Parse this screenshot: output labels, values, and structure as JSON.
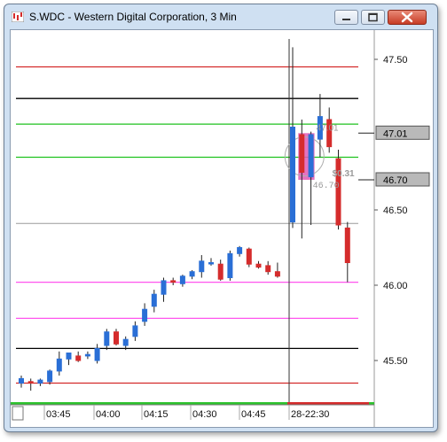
{
  "window": {
    "title": "S.WDC - Western Digital Corporation, 3 Min"
  },
  "buttons": {
    "minimize": "minimize",
    "maximize": "maximize",
    "close": "close"
  },
  "colors": {
    "bull": "#2a6fd6",
    "bear": "#d52c2c",
    "sel": "#e05bb5",
    "res_red": "#d42a2a",
    "black": "#000000",
    "green": "#1fc21f",
    "magenta": "#ff55ee",
    "grid": "#9a9a9a"
  },
  "price_axis": {
    "ticks": [
      "47.50",
      "46.50",
      "46.00",
      "45.50"
    ],
    "tags": [
      {
        "label": "47.01",
        "value": 47.01
      },
      {
        "label": "46.70",
        "value": 46.7
      }
    ]
  },
  "time_axis": {
    "ticks": [
      "03:45",
      "04:00",
      "04:15",
      "04:30",
      "04:45",
      "28-22:30"
    ]
  },
  "annotations": {
    "high_label": "47.01",
    "low_label": "46.70",
    "range_label": "$0.31"
  },
  "chart_data": {
    "type": "candlestick",
    "ylim": [
      45.25,
      47.75
    ],
    "levels_before": [
      47.45,
      47.24,
      47.07,
      46.85,
      46.41,
      46.02,
      45.78,
      45.58,
      45.35
    ],
    "levels_after": [
      47.45,
      47.24,
      47.07,
      46.85,
      46.41,
      46.02,
      45.78,
      45.58,
      45.35
    ],
    "level_colors": [
      "res_red",
      "black",
      "green",
      "green",
      "grid",
      "magenta",
      "magenta",
      "black",
      "res_red"
    ],
    "candles": [
      {
        "o": 45.35,
        "h": 45.4,
        "l": 45.32,
        "c": 45.38
      },
      {
        "o": 45.36,
        "h": 45.38,
        "l": 45.3,
        "c": 45.35
      },
      {
        "o": 45.35,
        "h": 45.38,
        "l": 45.33,
        "c": 45.37
      },
      {
        "o": 45.36,
        "h": 45.44,
        "l": 45.34,
        "c": 45.43
      },
      {
        "o": 45.43,
        "h": 45.56,
        "l": 45.4,
        "c": 45.51
      },
      {
        "o": 45.51,
        "h": 45.55,
        "l": 45.47,
        "c": 45.55
      },
      {
        "o": 45.53,
        "h": 45.56,
        "l": 45.49,
        "c": 45.5
      },
      {
        "o": 45.53,
        "h": 45.56,
        "l": 45.51,
        "c": 45.54
      },
      {
        "o": 45.5,
        "h": 45.61,
        "l": 45.48,
        "c": 45.58
      },
      {
        "o": 45.6,
        "h": 45.71,
        "l": 45.57,
        "c": 45.69
      },
      {
        "o": 45.69,
        "h": 45.71,
        "l": 45.6,
        "c": 45.61
      },
      {
        "o": 45.6,
        "h": 45.66,
        "l": 45.57,
        "c": 45.64
      },
      {
        "o": 45.66,
        "h": 45.76,
        "l": 45.63,
        "c": 45.73
      },
      {
        "o": 45.76,
        "h": 45.88,
        "l": 45.73,
        "c": 45.84
      },
      {
        "o": 45.86,
        "h": 45.97,
        "l": 45.82,
        "c": 45.94
      },
      {
        "o": 45.94,
        "h": 46.05,
        "l": 45.89,
        "c": 46.03
      },
      {
        "o": 46.03,
        "h": 46.05,
        "l": 46.0,
        "c": 46.02
      },
      {
        "o": 46.01,
        "h": 46.07,
        "l": 45.99,
        "c": 46.06
      },
      {
        "o": 46.06,
        "h": 46.1,
        "l": 46.04,
        "c": 46.09
      },
      {
        "o": 46.09,
        "h": 46.2,
        "l": 46.05,
        "c": 46.16
      },
      {
        "o": 46.15,
        "h": 46.18,
        "l": 46.13,
        "c": 46.15
      },
      {
        "o": 46.14,
        "h": 46.17,
        "l": 46.03,
        "c": 46.04
      },
      {
        "o": 46.05,
        "h": 46.23,
        "l": 46.03,
        "c": 46.21
      },
      {
        "o": 46.21,
        "h": 46.26,
        "l": 46.19,
        "c": 46.25
      },
      {
        "o": 46.24,
        "h": 46.25,
        "l": 46.12,
        "c": 46.14
      },
      {
        "o": 46.14,
        "h": 46.16,
        "l": 46.11,
        "c": 46.12
      },
      {
        "o": 46.13,
        "h": 46.16,
        "l": 46.07,
        "c": 46.09
      },
      {
        "o": 46.09,
        "h": 46.15,
        "l": 46.05,
        "c": 46.06
      },
      {
        "o": 46.42,
        "h": 47.58,
        "l": 46.38,
        "c": 47.05
      },
      {
        "o": 47.0,
        "h": 47.1,
        "l": 46.31,
        "c": 46.75
      },
      {
        "o": 46.72,
        "h": 47.02,
        "l": 46.4,
        "c": 47.0
      },
      {
        "o": 46.97,
        "h": 47.27,
        "l": 46.85,
        "c": 47.12
      },
      {
        "o": 47.1,
        "h": 47.18,
        "l": 46.88,
        "c": 46.92
      },
      {
        "o": 46.84,
        "h": 46.9,
        "l": 46.37,
        "c": 46.4
      },
      {
        "o": 46.38,
        "h": 46.42,
        "l": 46.02,
        "c": 46.15
      }
    ],
    "selection": {
      "from": 29,
      "to": 30,
      "high": 47.01,
      "low": 46.7
    }
  }
}
